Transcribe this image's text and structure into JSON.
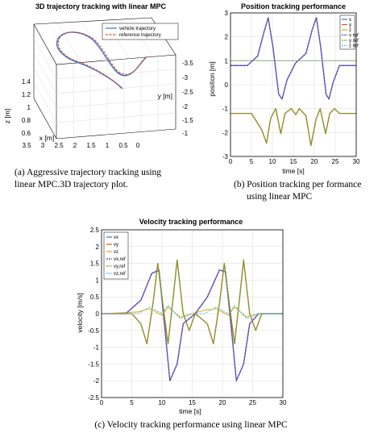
{
  "colors": {
    "vx": "#3b6fd6",
    "vy": "#d9531e",
    "vz": "#e0a80f",
    "vxr": "#7c3a9c",
    "vyr": "#5fb52e",
    "vzr": "#53c3e8",
    "vehicle": "#3b6fd6",
    "reference": "#d9531e"
  },
  "captions": {
    "a": [
      "(a) Aggressive trajectory tracking using",
      "linear MPC.3D trajectory plot."
    ],
    "b": [
      "(b) Position tracking per formance",
      "using linear MPC"
    ],
    "c": "(c) Velocity tracking performance using linear MPC"
  },
  "chart_data": [
    {
      "type": "line",
      "title": "3D trajectory tracking with linear MPC",
      "xlabel": "x [m]",
      "ylabel": "y [m]",
      "zlabel": "z [m]",
      "xticks": [
        "3.5",
        "3",
        "2.5",
        "2",
        "1.5",
        "1",
        "0.5",
        "0"
      ],
      "yticks": [
        "-3.5",
        "-3",
        "-2.5",
        "-2",
        "-1.5",
        "-1"
      ],
      "zticks": [
        "1.4",
        "1.2",
        "1",
        "0.8",
        "0.6"
      ],
      "legend": [
        "vehicle trajectory",
        "reference trajectory"
      ],
      "series": [
        {
          "name": "vehicle trajectory",
          "style": "solid"
        },
        {
          "name": "reference trajectory",
          "style": "dashed"
        }
      ],
      "grid": true,
      "legend_position": "top-right"
    },
    {
      "type": "line",
      "title": "Position tracking performance",
      "xlabel": "time [s]",
      "ylabel": "position [m]",
      "xlim": [
        0,
        30
      ],
      "ylim": [
        -3,
        3
      ],
      "xticks": [
        "0",
        "5",
        "10",
        "15",
        "20",
        "25",
        "30"
      ],
      "yticks": [
        "3",
        "2",
        "1",
        "0",
        "-1",
        "-2",
        "-3"
      ],
      "legend": [
        "x",
        "y",
        "z",
        "x ref",
        "y ref",
        "z ref"
      ],
      "legend_position": "top-right",
      "grid": true,
      "series": [
        {
          "name": "x",
          "points": [
            [
              0,
              0.8
            ],
            [
              4,
              0.8
            ],
            [
              6.5,
              1.2
            ],
            [
              8,
              2.2
            ],
            [
              9,
              2.8
            ],
            [
              10.2,
              1.5
            ],
            [
              11.5,
              -0.4
            ],
            [
              12.3,
              -0.6
            ],
            [
              13.5,
              0.2
            ],
            [
              15.5,
              0.9
            ],
            [
              18,
              1.3
            ],
            [
              19.5,
              2.3
            ],
            [
              20.5,
              2.8
            ],
            [
              21.5,
              1.6
            ],
            [
              22.8,
              -0.4
            ],
            [
              23.5,
              -0.6
            ],
            [
              24.5,
              0.1
            ],
            [
              26,
              0.8
            ],
            [
              30,
              0.8
            ]
          ]
        },
        {
          "name": "y",
          "points": [
            [
              0,
              -1.2
            ],
            [
              5,
              -1.2
            ],
            [
              7.5,
              -1.9
            ],
            [
              8.6,
              -2.45
            ],
            [
              9.6,
              -1.4
            ],
            [
              10.8,
              -1.0
            ],
            [
              12,
              -2.05
            ],
            [
              13,
              -1.2
            ],
            [
              14.5,
              -1.0
            ],
            [
              15.6,
              -1.25
            ],
            [
              16.4,
              -1.0
            ],
            [
              18,
              -1.3
            ],
            [
              19.2,
              -2.55
            ],
            [
              20.4,
              -1.45
            ],
            [
              21.4,
              -1.0
            ],
            [
              22.7,
              -2.05
            ],
            [
              23.7,
              -1.2
            ],
            [
              24.8,
              -1.0
            ],
            [
              26,
              -1.2
            ],
            [
              30,
              -1.2
            ]
          ]
        },
        {
          "name": "z",
          "points": [
            [
              0,
              1.0
            ],
            [
              30,
              1.0
            ]
          ]
        },
        {
          "name": "x ref",
          "points": [
            [
              0,
              0.8
            ],
            [
              4,
              0.8
            ],
            [
              6.5,
              1.2
            ],
            [
              8,
              2.2
            ],
            [
              9,
              2.8
            ],
            [
              10.2,
              1.5
            ],
            [
              11.5,
              -0.4
            ],
            [
              12.3,
              -0.6
            ],
            [
              13.5,
              0.2
            ],
            [
              15.5,
              0.9
            ],
            [
              18,
              1.3
            ],
            [
              19.5,
              2.3
            ],
            [
              20.5,
              2.8
            ],
            [
              21.5,
              1.6
            ],
            [
              22.8,
              -0.4
            ],
            [
              23.5,
              -0.6
            ],
            [
              24.5,
              0.1
            ],
            [
              26,
              0.8
            ],
            [
              30,
              0.8
            ]
          ]
        },
        {
          "name": "y ref",
          "points": [
            [
              0,
              -1.2
            ],
            [
              5,
              -1.2
            ],
            [
              7.5,
              -1.9
            ],
            [
              8.6,
              -2.45
            ],
            [
              9.6,
              -1.4
            ],
            [
              10.8,
              -1.0
            ],
            [
              12,
              -2.05
            ],
            [
              13,
              -1.2
            ],
            [
              14.5,
              -1.0
            ],
            [
              15.6,
              -1.25
            ],
            [
              16.4,
              -1.0
            ],
            [
              18,
              -1.3
            ],
            [
              19.2,
              -2.55
            ],
            [
              20.4,
              -1.45
            ],
            [
              21.4,
              -1.0
            ],
            [
              22.7,
              -2.05
            ],
            [
              23.7,
              -1.2
            ],
            [
              24.8,
              -1.0
            ],
            [
              26,
              -1.2
            ],
            [
              30,
              -1.2
            ]
          ]
        },
        {
          "name": "z ref",
          "points": [
            [
              0,
              1.0
            ],
            [
              30,
              1.0
            ]
          ]
        }
      ]
    },
    {
      "type": "line",
      "title": "Velocity tracking performance",
      "xlabel": "time [s]",
      "ylabel": "velocity [m/s]",
      "xlim": [
        0,
        30
      ],
      "ylim": [
        -2.5,
        2.5
      ],
      "xticks": [
        "0",
        "5",
        "10",
        "15",
        "20",
        "25",
        "30"
      ],
      "yticks": [
        "2.5",
        "2",
        "1.5",
        "1",
        "0.5",
        "0",
        "-0.5",
        "-1",
        "-1.5",
        "-2",
        "-2.5"
      ],
      "legend": [
        "vx",
        "vy",
        "vz",
        "vx,ref",
        "vy,ref",
        "vz,ref"
      ],
      "legend_position": "top-left",
      "grid": true,
      "series": [
        {
          "name": "vx",
          "points": [
            [
              0,
              0
            ],
            [
              4,
              0
            ],
            [
              6.5,
              0.4
            ],
            [
              8.3,
              1.2
            ],
            [
              9.5,
              1.3
            ],
            [
              10.5,
              -0.5
            ],
            [
              11.3,
              -2.0
            ],
            [
              12.5,
              -1.5
            ],
            [
              13.5,
              -0.3
            ],
            [
              15.5,
              0
            ],
            [
              17.5,
              0.5
            ],
            [
              19.5,
              1.3
            ],
            [
              20.5,
              1.25
            ],
            [
              21.5,
              -0.5
            ],
            [
              22.3,
              -2.0
            ],
            [
              23.5,
              -1.5
            ],
            [
              24.5,
              -0.3
            ],
            [
              26,
              0
            ],
            [
              30,
              0
            ]
          ]
        },
        {
          "name": "vy",
          "points": [
            [
              0,
              0
            ],
            [
              5,
              0
            ],
            [
              6.5,
              -0.3
            ],
            [
              7.5,
              -0.9
            ],
            [
              8.5,
              0.3
            ],
            [
              9.3,
              1.5
            ],
            [
              10.2,
              0.2
            ],
            [
              11,
              -0.9
            ],
            [
              11.8,
              0.4
            ],
            [
              12.5,
              1.6
            ],
            [
              13.5,
              0
            ],
            [
              14.5,
              -0.5
            ],
            [
              15.5,
              0
            ],
            [
              17.5,
              -0.3
            ],
            [
              18.5,
              -0.9
            ],
            [
              19.5,
              0.3
            ],
            [
              20.3,
              1.5
            ],
            [
              21.2,
              0.2
            ],
            [
              22,
              -0.9
            ],
            [
              22.8,
              0.4
            ],
            [
              23.5,
              1.6
            ],
            [
              24.5,
              0
            ],
            [
              25.5,
              -0.5
            ],
            [
              26.5,
              0
            ],
            [
              30,
              0
            ]
          ]
        },
        {
          "name": "vz",
          "points": [
            [
              0,
              0
            ],
            [
              6,
              0.05
            ],
            [
              8,
              0.15
            ],
            [
              10,
              -0.05
            ],
            [
              11,
              0.2
            ],
            [
              13,
              -0.1
            ],
            [
              15,
              0
            ],
            [
              17,
              0.1
            ],
            [
              19,
              0.15
            ],
            [
              21,
              -0.05
            ],
            [
              22,
              0.2
            ],
            [
              24,
              -0.1
            ],
            [
              26,
              0
            ],
            [
              30,
              0
            ]
          ]
        },
        {
          "name": "vx,ref",
          "points": [
            [
              0,
              0
            ],
            [
              4,
              0
            ],
            [
              6.5,
              0.4
            ],
            [
              8.3,
              1.2
            ],
            [
              9.5,
              1.3
            ],
            [
              10.5,
              -0.5
            ],
            [
              11.3,
              -2.0
            ],
            [
              12.5,
              -1.5
            ],
            [
              13.5,
              -0.3
            ],
            [
              15.5,
              0
            ],
            [
              17.5,
              0.5
            ],
            [
              19.5,
              1.3
            ],
            [
              20.5,
              1.25
            ],
            [
              21.5,
              -0.5
            ],
            [
              22.3,
              -2.0
            ],
            [
              23.5,
              -1.5
            ],
            [
              24.5,
              -0.3
            ],
            [
              26,
              0
            ],
            [
              30,
              0
            ]
          ]
        },
        {
          "name": "vy,ref",
          "points": [
            [
              0,
              0
            ],
            [
              5,
              0
            ],
            [
              6.5,
              -0.3
            ],
            [
              7.5,
              -0.9
            ],
            [
              8.5,
              0.3
            ],
            [
              9.3,
              1.5
            ],
            [
              10.2,
              0.2
            ],
            [
              11,
              -0.9
            ],
            [
              11.8,
              0.4
            ],
            [
              12.5,
              1.6
            ],
            [
              13.5,
              0
            ],
            [
              14.5,
              -0.5
            ],
            [
              15.5,
              0
            ],
            [
              17.5,
              -0.3
            ],
            [
              18.5,
              -0.9
            ],
            [
              19.5,
              0.3
            ],
            [
              20.3,
              1.5
            ],
            [
              21.2,
              0.2
            ],
            [
              22,
              -0.9
            ],
            [
              22.8,
              0.4
            ],
            [
              23.5,
              1.6
            ],
            [
              24.5,
              0
            ],
            [
              25.5,
              -0.5
            ],
            [
              26.5,
              0
            ],
            [
              30,
              0
            ]
          ]
        },
        {
          "name": "vz,ref",
          "points": [
            [
              0,
              0
            ],
            [
              6,
              0
            ],
            [
              8,
              0.2
            ],
            [
              10,
              0
            ],
            [
              11,
              0.25
            ],
            [
              13,
              -0.15
            ],
            [
              15,
              0
            ],
            [
              17,
              0
            ],
            [
              19,
              0.2
            ],
            [
              21,
              0
            ],
            [
              22,
              0.25
            ],
            [
              24,
              -0.15
            ],
            [
              26,
              0
            ],
            [
              30,
              0
            ]
          ]
        }
      ]
    }
  ]
}
